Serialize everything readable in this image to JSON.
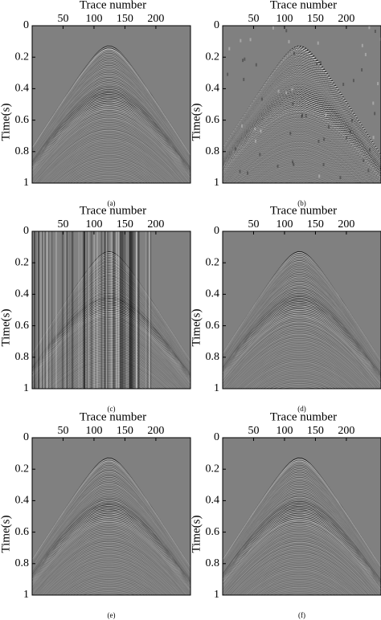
{
  "chart_data": [
    {
      "type": "seismic",
      "caption": "(a)",
      "xlabel": "Trace number",
      "ylabel": "Time(s)",
      "xlim": [
        0,
        256
      ],
      "xticks": [
        50,
        100,
        150,
        200
      ],
      "ylim": [
        0,
        1
      ],
      "yticks": [
        0,
        0.2,
        0.4,
        0.6,
        0.8,
        1
      ]
    },
    {
      "type": "seismic",
      "caption": "(b)",
      "xlabel": "Trace number",
      "ylabel": "Time(s)",
      "xlim": [
        0,
        256
      ],
      "xticks": [
        50,
        100,
        150,
        200
      ],
      "ylim": [
        0,
        1
      ],
      "yticks": [
        0,
        0.2,
        0.4,
        0.6,
        0.8,
        1
      ]
    },
    {
      "type": "seismic",
      "caption": "(c)",
      "xlabel": "Trace number",
      "ylabel": "Time(s)",
      "xlim": [
        0,
        256
      ],
      "xticks": [
        50,
        100,
        150,
        200
      ],
      "ylim": [
        0,
        1
      ],
      "yticks": [
        0,
        0.2,
        0.4,
        0.6,
        0.8,
        1
      ]
    },
    {
      "type": "seismic",
      "caption": "(d)",
      "xlabel": "Trace number",
      "ylabel": "Time(s)",
      "xlim": [
        0,
        256
      ],
      "xticks": [
        50,
        100,
        150,
        200
      ],
      "ylim": [
        0,
        1
      ],
      "yticks": [
        0,
        0.2,
        0.4,
        0.6,
        0.8,
        1
      ]
    },
    {
      "type": "seismic",
      "caption": "(e)",
      "xlabel": "Trace number",
      "ylabel": "Time(s)",
      "xlim": [
        0,
        256
      ],
      "xticks": [
        50,
        100,
        150,
        200
      ],
      "ylim": [
        0,
        1
      ],
      "yticks": [
        0,
        0.2,
        0.4,
        0.6,
        0.8,
        1
      ]
    },
    {
      "type": "seismic",
      "caption": "(f)",
      "xlabel": "Trace number",
      "ylabel": "Time(s)",
      "xlim": [
        0,
        256
      ],
      "xticks": [
        50,
        100,
        150,
        200
      ],
      "ylim": [
        0,
        1
      ],
      "yticks": [
        0,
        0.2,
        0.4,
        0.6,
        0.8,
        1
      ]
    }
  ]
}
